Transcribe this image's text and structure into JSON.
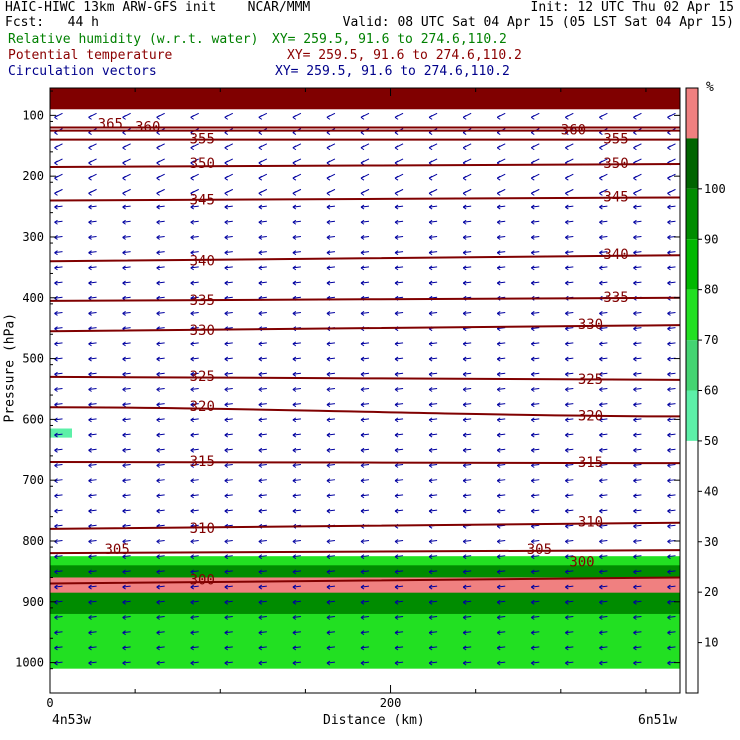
{
  "header": {
    "title": "HAIC-HIWC 13km ARW-GFS init",
    "org": "NCAR/MMM",
    "init": "Init: 12 UTC Thu 02 Apr 15",
    "fcst": "Fcst:   44 h",
    "valid": "Valid: 08 UTC Sat 04 Apr 15 (05 LST Sat 04 Apr 15)",
    "fields": [
      {
        "name": "Relative humidity (w.r.t. water)",
        "xy": "XY= 259.5, 91.6 to 274.6,110.2",
        "color": "#008000"
      },
      {
        "name": "Potential temperature",
        "xy": "XY= 259.5, 91.6 to 274.6,110.2",
        "color": "#8b0000"
      },
      {
        "name": "Circulation vectors",
        "xy": "XY= 259.5, 91.6 to 274.6,110.2",
        "color": "#00008b"
      }
    ]
  },
  "chart_data": {
    "type": "heatmap",
    "xlabel": "Distance (km)",
    "ylabel": "Pressure (hPa)",
    "xlim": [
      0,
      370
    ],
    "ylim": [
      1050,
      50
    ],
    "x_ticks": [
      0,
      200
    ],
    "y_ticks": [
      100,
      200,
      300,
      400,
      500,
      600,
      700,
      800,
      900,
      1000
    ],
    "x_end_labels": [
      "4n53w",
      "6n51w"
    ],
    "colorbar": {
      "unit": "%",
      "levels": [
        10,
        20,
        30,
        40,
        50,
        60,
        70,
        80,
        90,
        100
      ],
      "colors": [
        "#ffffff",
        "#ffffff",
        "#ffffff",
        "#ffffff",
        "#ffffff",
        "#5cf0a8",
        "#44d472",
        "#22e022",
        "#00b800",
        "#008c00",
        "#006400",
        "#f08080"
      ]
    },
    "rh_regions": [
      {
        "p_top": 55,
        "p_bottom": 90,
        "rh": 100,
        "color": "#800000"
      },
      {
        "p_top": 825,
        "p_bottom": 1010,
        "rh": 80,
        "color": "#22e022"
      },
      {
        "p_top": 840,
        "p_bottom": 920,
        "rh": 90,
        "color": "#008c00"
      },
      {
        "p_top": 860,
        "p_bottom": 885,
        "rh": 100,
        "color": "#f08080"
      },
      {
        "p_top": 615,
        "p_bottom": 630,
        "rh": 55,
        "color": "#5cf0a8"
      }
    ],
    "theta_contours": [
      {
        "level": 365,
        "p": [
          120,
          120
        ]
      },
      {
        "level": 360,
        "p": [
          125,
          125
        ]
      },
      {
        "level": 355,
        "p": [
          140,
          140
        ]
      },
      {
        "level": 350,
        "p": [
          185,
          180
        ]
      },
      {
        "level": 345,
        "p": [
          240,
          235
        ]
      },
      {
        "level": 340,
        "p": [
          340,
          330
        ]
      },
      {
        "level": 335,
        "p": [
          405,
          400
        ]
      },
      {
        "level": 330,
        "p": [
          455,
          445
        ]
      },
      {
        "level": 325,
        "p": [
          530,
          535
        ]
      },
      {
        "level": 320,
        "p": [
          580,
          595
        ]
      },
      {
        "level": 315,
        "p": [
          670,
          672
        ]
      },
      {
        "level": 310,
        "p": [
          780,
          770
        ]
      },
      {
        "level": 305,
        "p": [
          820,
          815
        ]
      },
      {
        "level": 300,
        "p": [
          870,
          860
        ]
      }
    ],
    "theta_labels": [
      {
        "text": "365",
        "x": 28,
        "p": 115
      },
      {
        "text": "360",
        "x": 50,
        "p": 120
      },
      {
        "text": "355",
        "x": 82,
        "p": 140
      },
      {
        "text": "350",
        "x": 82,
        "p": 180
      },
      {
        "text": "345",
        "x": 82,
        "p": 240
      },
      {
        "text": "340",
        "x": 82,
        "p": 340
      },
      {
        "text": "335",
        "x": 82,
        "p": 405
      },
      {
        "text": "330",
        "x": 82,
        "p": 455
      },
      {
        "text": "325",
        "x": 82,
        "p": 530
      },
      {
        "text": "320",
        "x": 82,
        "p": 580
      },
      {
        "text": "315",
        "x": 82,
        "p": 670
      },
      {
        "text": "310",
        "x": 82,
        "p": 780
      },
      {
        "text": "305",
        "x": 32,
        "p": 815
      },
      {
        "text": "300",
        "x": 82,
        "p": 865
      },
      {
        "text": "360",
        "x": 300,
        "p": 125
      },
      {
        "text": "355",
        "x": 325,
        "p": 140
      },
      {
        "text": "350",
        "x": 325,
        "p": 180
      },
      {
        "text": "345",
        "x": 325,
        "p": 235
      },
      {
        "text": "340",
        "x": 325,
        "p": 330
      },
      {
        "text": "335",
        "x": 325,
        "p": 400
      },
      {
        "text": "330",
        "x": 310,
        "p": 445
      },
      {
        "text": "325",
        "x": 310,
        "p": 535
      },
      {
        "text": "320",
        "x": 310,
        "p": 595
      },
      {
        "text": "315",
        "x": 310,
        "p": 672
      },
      {
        "text": "310",
        "x": 310,
        "p": 770
      },
      {
        "text": "305",
        "x": 280,
        "p": 815
      },
      {
        "text": "300",
        "x": 305,
        "p": 835
      }
    ]
  }
}
